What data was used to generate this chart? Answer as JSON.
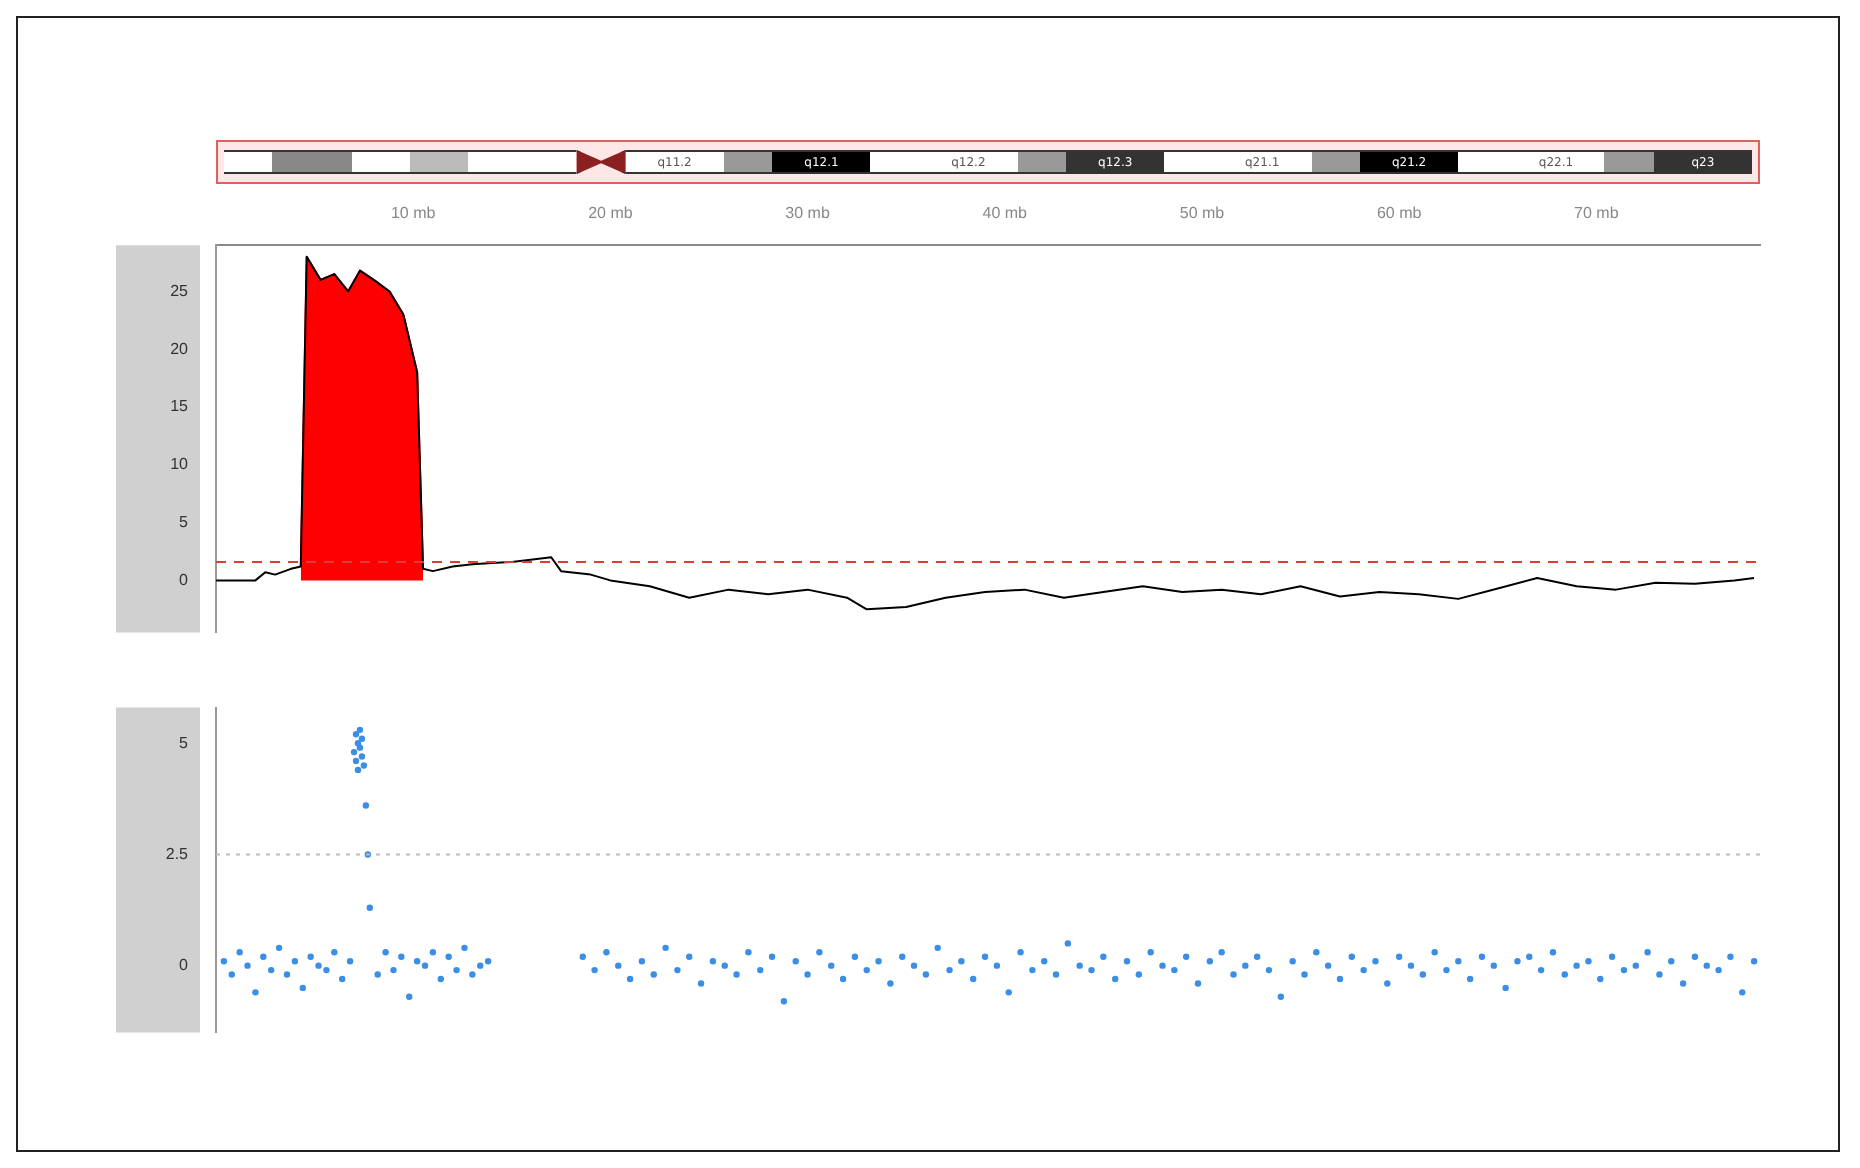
{
  "chart_data": [
    {
      "type": "line",
      "annotations": [
        "q11.2",
        "q12.1",
        "q12.2",
        "q12.3",
        "q21.1",
        "q21.2",
        "q22.1",
        "q23"
      ],
      "xlim": [
        0,
        78.3
      ],
      "xticks": [
        {
          "value": 10,
          "label": "10 mb"
        },
        {
          "value": 20,
          "label": "20 mb"
        },
        {
          "value": 30,
          "label": "30 mb"
        },
        {
          "value": 40,
          "label": "40 mb"
        },
        {
          "value": 50,
          "label": "50 mb"
        },
        {
          "value": 60,
          "label": "60 mb"
        },
        {
          "value": 70,
          "label": "70 mb"
        }
      ],
      "ylim": [
        -4.5,
        29
      ],
      "yticks": [
        0,
        5,
        10,
        15,
        20,
        25
      ],
      "grid": false,
      "legend": false,
      "ref_lines": [
        {
          "axis": "y",
          "value": 1.6,
          "color": "#e53935",
          "line_style": "dashed"
        }
      ],
      "series": [
        {
          "type": "area",
          "color": "#ff0000",
          "x": [
            4.3,
            4.6,
            5.3,
            6.0,
            6.7,
            7.3,
            8.0,
            8.8,
            9.5,
            10.2,
            10.5
          ],
          "values": [
            1.2,
            28,
            26,
            26.5,
            25,
            26.8,
            26,
            25,
            23,
            18,
            1.0
          ]
        },
        {
          "color": "#000000",
          "x": [
            0,
            1,
            2,
            2.5,
            3,
            3.8,
            4.3,
            4.6,
            5.3,
            6.0,
            6.7,
            7.3,
            8.0,
            8.8,
            9.5,
            10.2,
            10.5,
            11,
            12,
            13,
            14,
            15,
            17,
            17.5,
            19,
            20,
            22,
            24,
            26,
            28,
            30,
            32,
            33,
            35,
            37,
            39,
            41,
            43,
            45,
            47,
            49,
            51,
            53,
            55,
            57,
            59,
            61,
            63,
            65,
            67,
            69,
            71,
            73,
            75,
            77,
            78
          ],
          "values": [
            0,
            0,
            0,
            0.7,
            0.5,
            1.0,
            1.2,
            28,
            26,
            26.5,
            25,
            26.8,
            26,
            25,
            23,
            18,
            1.0,
            0.8,
            1.2,
            1.4,
            1.5,
            1.6,
            2.0,
            0.8,
            0.5,
            0,
            -0.5,
            -1.5,
            -0.8,
            -1.2,
            -0.8,
            -1.5,
            -2.5,
            -2.3,
            -1.5,
            -1.0,
            -0.8,
            -1.5,
            -1.0,
            -0.5,
            -1.0,
            -0.8,
            -1.2,
            -0.5,
            -1.4,
            -1.0,
            -1.2,
            -1.6,
            -0.7,
            0.2,
            -0.5,
            -0.8,
            -0.2,
            -0.3,
            0,
            0.2
          ]
        }
      ]
    },
    {
      "type": "scatter",
      "xlim": [
        0,
        78.3
      ],
      "ylim": [
        -1.5,
        5.8
      ],
      "yticks": [
        0,
        2.5,
        5
      ],
      "tick_labels": "y",
      "grid": false,
      "legend": false,
      "marker": "circle",
      "ref_lines": [
        {
          "axis": "y",
          "value": 2.5,
          "color": "#bbbbbb",
          "line_style": "dotted"
        }
      ],
      "series": [
        {
          "color": "#3a8ee6",
          "x": [
            0.4,
            0.8,
            1.2,
            1.6,
            2.0,
            2.4,
            2.8,
            3.2,
            3.6,
            4.0,
            4.4,
            4.8,
            5.2,
            5.6,
            6.0,
            6.4,
            6.8,
            7.0,
            7.1,
            7.1,
            7.2,
            7.2,
            7.3,
            7.3,
            7.4,
            7.4,
            7.5,
            7.6,
            7.7,
            7.8,
            8.2,
            8.6,
            9.0,
            9.4,
            9.8,
            10.2,
            10.6,
            11.0,
            11.4,
            11.8,
            12.2,
            12.6,
            13.0,
            13.4,
            13.8,
            18.6,
            19.2,
            19.8,
            20.4,
            21.0,
            21.6,
            22.2,
            22.8,
            23.4,
            24.0,
            24.6,
            25.2,
            25.8,
            26.4,
            27.0,
            27.6,
            28.2,
            28.8,
            29.4,
            30.0,
            30.6,
            31.2,
            31.8,
            32.4,
            33.0,
            33.6,
            34.2,
            34.8,
            35.4,
            36.0,
            36.6,
            37.2,
            37.8,
            38.4,
            39.0,
            39.6,
            40.2,
            40.8,
            41.4,
            42.0,
            42.6,
            43.2,
            43.8,
            44.4,
            45.0,
            45.6,
            46.2,
            46.8,
            47.4,
            48.0,
            48.6,
            49.2,
            49.8,
            50.4,
            51.0,
            51.6,
            52.2,
            52.8,
            53.4,
            54.0,
            54.6,
            55.2,
            55.8,
            56.4,
            57.0,
            57.6,
            58.2,
            58.8,
            59.4,
            60.0,
            60.6,
            61.2,
            61.8,
            62.4,
            63.0,
            63.6,
            64.2,
            64.8,
            65.4,
            66.0,
            66.6,
            67.2,
            67.8,
            68.4,
            69.0,
            69.6,
            70.2,
            70.8,
            71.4,
            72.0,
            72.6,
            73.2,
            73.8,
            74.4,
            75.0,
            75.6,
            76.2,
            76.8,
            77.4,
            78.0
          ],
          "values": [
            0.1,
            -0.2,
            0.3,
            0.0,
            -0.6,
            0.2,
            -0.1,
            0.4,
            -0.2,
            0.1,
            -0.5,
            0.2,
            0.0,
            -0.1,
            0.3,
            -0.3,
            0.1,
            4.8,
            5.2,
            4.6,
            5.0,
            4.4,
            5.3,
            4.9,
            4.7,
            5.1,
            4.5,
            3.6,
            2.5,
            1.3,
            -0.2,
            0.3,
            -0.1,
            0.2,
            -0.7,
            0.1,
            0.0,
            0.3,
            -0.3,
            0.2,
            -0.1,
            0.4,
            -0.2,
            0.0,
            0.1,
            0.2,
            -0.1,
            0.3,
            0.0,
            -0.3,
            0.1,
            -0.2,
            0.4,
            -0.1,
            0.2,
            -0.4,
            0.1,
            0.0,
            -0.2,
            0.3,
            -0.1,
            0.2,
            -0.8,
            0.1,
            -0.2,
            0.3,
            0.0,
            -0.3,
            0.2,
            -0.1,
            0.1,
            -0.4,
            0.2,
            0.0,
            -0.2,
            0.4,
            -0.1,
            0.1,
            -0.3,
            0.2,
            0.0,
            -0.6,
            0.3,
            -0.1,
            0.1,
            -0.2,
            0.5,
            0.0,
            -0.1,
            0.2,
            -0.3,
            0.1,
            -0.2,
            0.3,
            0.0,
            -0.1,
            0.2,
            -0.4,
            0.1,
            0.3,
            -0.2,
            0.0,
            0.2,
            -0.1,
            -0.7,
            0.1,
            -0.2,
            0.3,
            0.0,
            -0.3,
            0.2,
            -0.1,
            0.1,
            -0.4,
            0.2,
            0.0,
            -0.2,
            0.3,
            -0.1,
            0.1,
            -0.3,
            0.2,
            0.0,
            -0.5,
            0.1,
            0.2,
            -0.1,
            0.3,
            -0.2,
            0.0,
            0.1,
            -0.3,
            0.2,
            -0.1,
            0.0,
            0.3,
            -0.2,
            0.1,
            -0.4,
            0.2,
            0.0,
            -0.1,
            0.2,
            -0.6,
            0.1
          ]
        }
      ]
    }
  ]
}
